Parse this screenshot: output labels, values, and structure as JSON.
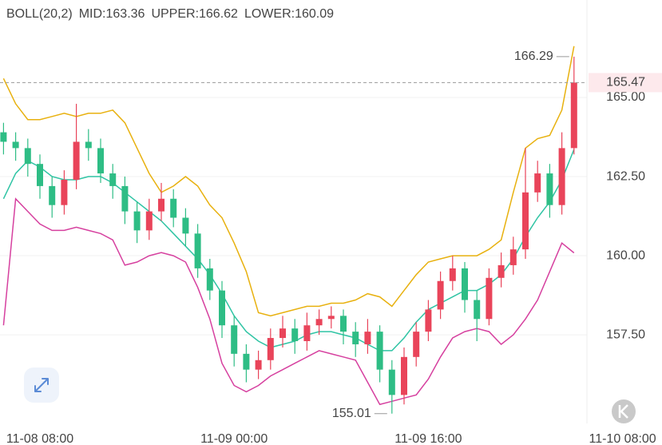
{
  "chart_data": {
    "type": "candlestick",
    "indicator": "BOLL(20,2)",
    "indicator_labels": [
      {
        "label": "MID:163.36",
        "color": "#2fc4a4"
      },
      {
        "label": "UPPER:166.62",
        "color": "#e8b10f"
      },
      {
        "label": "LOWER:160.09",
        "color": "#d6409f"
      }
    ],
    "categories": [
      null,
      null,
      null,
      "11-08 08:00",
      null,
      null,
      null,
      null,
      null,
      null,
      null,
      null,
      null,
      null,
      null,
      null,
      null,
      null,
      null,
      "11-09 00:00",
      null,
      null,
      null,
      null,
      null,
      null,
      null,
      null,
      null,
      null,
      null,
      null,
      null,
      null,
      null,
      "11-09 16:00",
      null,
      null,
      null,
      null,
      null,
      null,
      null,
      null,
      null,
      null,
      null,
      null,
      null,
      null,
      null,
      "11-10 08:00"
    ],
    "open": [
      163.9,
      163.6,
      163.4,
      162.9,
      162.2,
      161.6,
      162.4,
      163.6,
      163.4,
      162.6,
      162.2,
      161.4,
      160.8,
      161.4,
      161.8,
      161.2,
      160.7,
      159.6,
      158.9,
      157.8,
      156.9,
      156.4,
      156.7,
      157.4,
      157.7,
      157.3,
      157.8,
      158.0,
      158.1,
      157.6,
      157.2,
      157.6,
      156.4,
      155.6,
      156.8,
      157.6,
      158.3,
      159.2,
      159.6,
      158.6,
      158.0,
      159.3,
      159.7,
      160.2,
      162.0,
      162.6,
      161.6,
      163.4,
      null,
      null,
      null,
      null
    ],
    "high": [
      164.2,
      163.9,
      163.7,
      163.2,
      162.5,
      162.7,
      164.8,
      164.0,
      163.7,
      162.9,
      162.5,
      161.7,
      161.8,
      162.3,
      162.1,
      161.5,
      161.0,
      159.9,
      159.2,
      158.1,
      157.2,
      157.0,
      157.7,
      158.1,
      158.0,
      158.2,
      158.3,
      158.4,
      158.3,
      157.9,
      158.0,
      157.8,
      156.7,
      157.1,
      157.9,
      158.6,
      159.5,
      160.0,
      159.8,
      158.9,
      159.6,
      160.1,
      160.6,
      163.4,
      163.0,
      162.9,
      163.9,
      166.29,
      null,
      null,
      null,
      null
    ],
    "low": [
      163.2,
      163.0,
      162.5,
      161.8,
      161.2,
      161.3,
      162.1,
      163.0,
      162.3,
      161.8,
      161.0,
      160.4,
      160.5,
      161.1,
      160.9,
      160.3,
      159.3,
      158.6,
      157.4,
      156.5,
      156.0,
      156.1,
      156.4,
      157.1,
      156.9,
      157.0,
      157.5,
      157.7,
      157.2,
      156.8,
      156.9,
      156.0,
      155.01,
      155.3,
      156.5,
      157.3,
      158.0,
      158.9,
      158.2,
      157.3,
      157.8,
      159.0,
      159.4,
      159.9,
      161.7,
      161.2,
      161.3,
      163.2,
      null,
      null,
      null,
      null
    ],
    "close": [
      163.6,
      163.4,
      162.9,
      162.2,
      161.6,
      162.4,
      163.6,
      163.4,
      162.6,
      162.2,
      161.4,
      160.8,
      161.4,
      161.8,
      161.2,
      160.7,
      159.6,
      158.9,
      157.8,
      156.9,
      156.4,
      156.7,
      157.4,
      157.7,
      157.3,
      157.8,
      158.0,
      158.1,
      157.6,
      157.2,
      157.6,
      156.4,
      155.6,
      156.8,
      157.6,
      158.3,
      159.2,
      159.6,
      158.6,
      158.0,
      159.3,
      159.7,
      160.2,
      162.0,
      162.6,
      161.6,
      163.4,
      165.47,
      null,
      null,
      null,
      null
    ],
    "up_color": "#e9445a",
    "down_color": "#2ebd85",
    "series": [
      {
        "name": "UPPER",
        "color": "#e8b10f",
        "values": [
          165.6,
          164.8,
          164.3,
          164.3,
          164.4,
          164.5,
          164.4,
          164.5,
          164.5,
          164.6,
          164.2,
          163.4,
          162.6,
          162.0,
          162.2,
          162.5,
          162.2,
          161.6,
          161.2,
          160.4,
          159.5,
          158.2,
          158.1,
          158.2,
          158.3,
          158.4,
          158.4,
          158.5,
          158.5,
          158.6,
          158.8,
          158.7,
          158.4,
          158.9,
          159.4,
          159.8,
          159.9,
          160.0,
          160.0,
          160.0,
          160.2,
          160.5,
          162.0,
          163.4,
          163.7,
          163.8,
          164.6,
          166.62,
          null,
          null,
          null,
          null
        ]
      },
      {
        "name": "MID",
        "color": "#2fc4a4",
        "values": [
          161.8,
          162.6,
          163.0,
          162.8,
          162.5,
          162.4,
          162.4,
          162.5,
          162.5,
          162.3,
          162.0,
          161.7,
          161.4,
          161.1,
          160.7,
          160.3,
          159.9,
          159.4,
          158.8,
          158.1,
          157.6,
          157.3,
          157.1,
          157.2,
          157.3,
          157.5,
          157.6,
          157.6,
          157.5,
          157.4,
          157.2,
          157.0,
          157.0,
          157.4,
          157.9,
          158.3,
          158.5,
          158.7,
          158.9,
          158.9,
          159.1,
          159.4,
          159.9,
          160.6,
          161.2,
          161.7,
          162.4,
          163.36,
          null,
          null,
          null,
          null
        ]
      },
      {
        "name": "LOWER",
        "color": "#d6409f",
        "values": [
          157.8,
          161.8,
          161.4,
          161.0,
          160.8,
          160.8,
          160.9,
          160.8,
          160.7,
          160.5,
          159.7,
          159.8,
          160.0,
          160.1,
          160.0,
          159.8,
          159.0,
          158.0,
          156.6,
          155.9,
          155.7,
          155.9,
          156.2,
          156.4,
          156.6,
          156.8,
          157.0,
          156.9,
          156.8,
          156.7,
          156.0,
          155.3,
          155.4,
          155.5,
          155.6,
          156.1,
          156.8,
          157.4,
          157.6,
          157.7,
          157.6,
          157.2,
          157.5,
          158.0,
          158.6,
          159.5,
          160.4,
          160.09,
          null,
          null,
          null,
          null
        ]
      }
    ],
    "ylim": [
      154.7,
      168.08
    ],
    "yticks": [
      {
        "value": 157.5,
        "label": "157.50"
      },
      {
        "value": 160,
        "label": "160.00"
      },
      {
        "value": 162.5,
        "label": "162.50"
      },
      {
        "value": 165,
        "label": "165.00"
      }
    ],
    "grid": true,
    "last_price_color": "#e9445a"
  }
}
